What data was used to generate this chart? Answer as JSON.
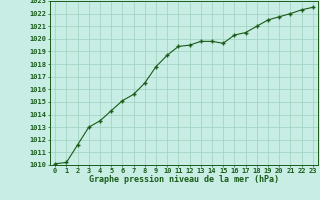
{
  "x": [
    0,
    1,
    2,
    3,
    4,
    5,
    6,
    7,
    8,
    9,
    10,
    11,
    12,
    13,
    14,
    15,
    16,
    17,
    18,
    19,
    20,
    21,
    22,
    23
  ],
  "y": [
    1010.1,
    1010.2,
    1011.6,
    1013.0,
    1013.5,
    1014.3,
    1015.1,
    1015.6,
    1016.5,
    1017.8,
    1018.7,
    1019.4,
    1019.5,
    1019.8,
    1019.8,
    1019.65,
    1020.3,
    1020.5,
    1021.0,
    1021.5,
    1021.75,
    1022.0,
    1022.3,
    1022.5
  ],
  "line_color": "#1a5c1a",
  "marker": "+",
  "bg_color": "#c8ede4",
  "grid_color": "#9ecfbe",
  "xlabel": "Graphe pression niveau de la mer (hPa)",
  "xlim": [
    -0.5,
    23.5
  ],
  "ylim": [
    1010,
    1023
  ],
  "yticks": [
    1010,
    1011,
    1012,
    1013,
    1014,
    1015,
    1016,
    1017,
    1018,
    1019,
    1020,
    1021,
    1022,
    1023
  ],
  "xticks": [
    0,
    1,
    2,
    3,
    4,
    5,
    6,
    7,
    8,
    9,
    10,
    11,
    12,
    13,
    14,
    15,
    16,
    17,
    18,
    19,
    20,
    21,
    22,
    23
  ],
  "tick_color": "#1a5c1a",
  "label_color": "#1a5c1a",
  "font_family": "monospace",
  "tick_fontsize": 5.0,
  "xlabel_fontsize": 6.0
}
